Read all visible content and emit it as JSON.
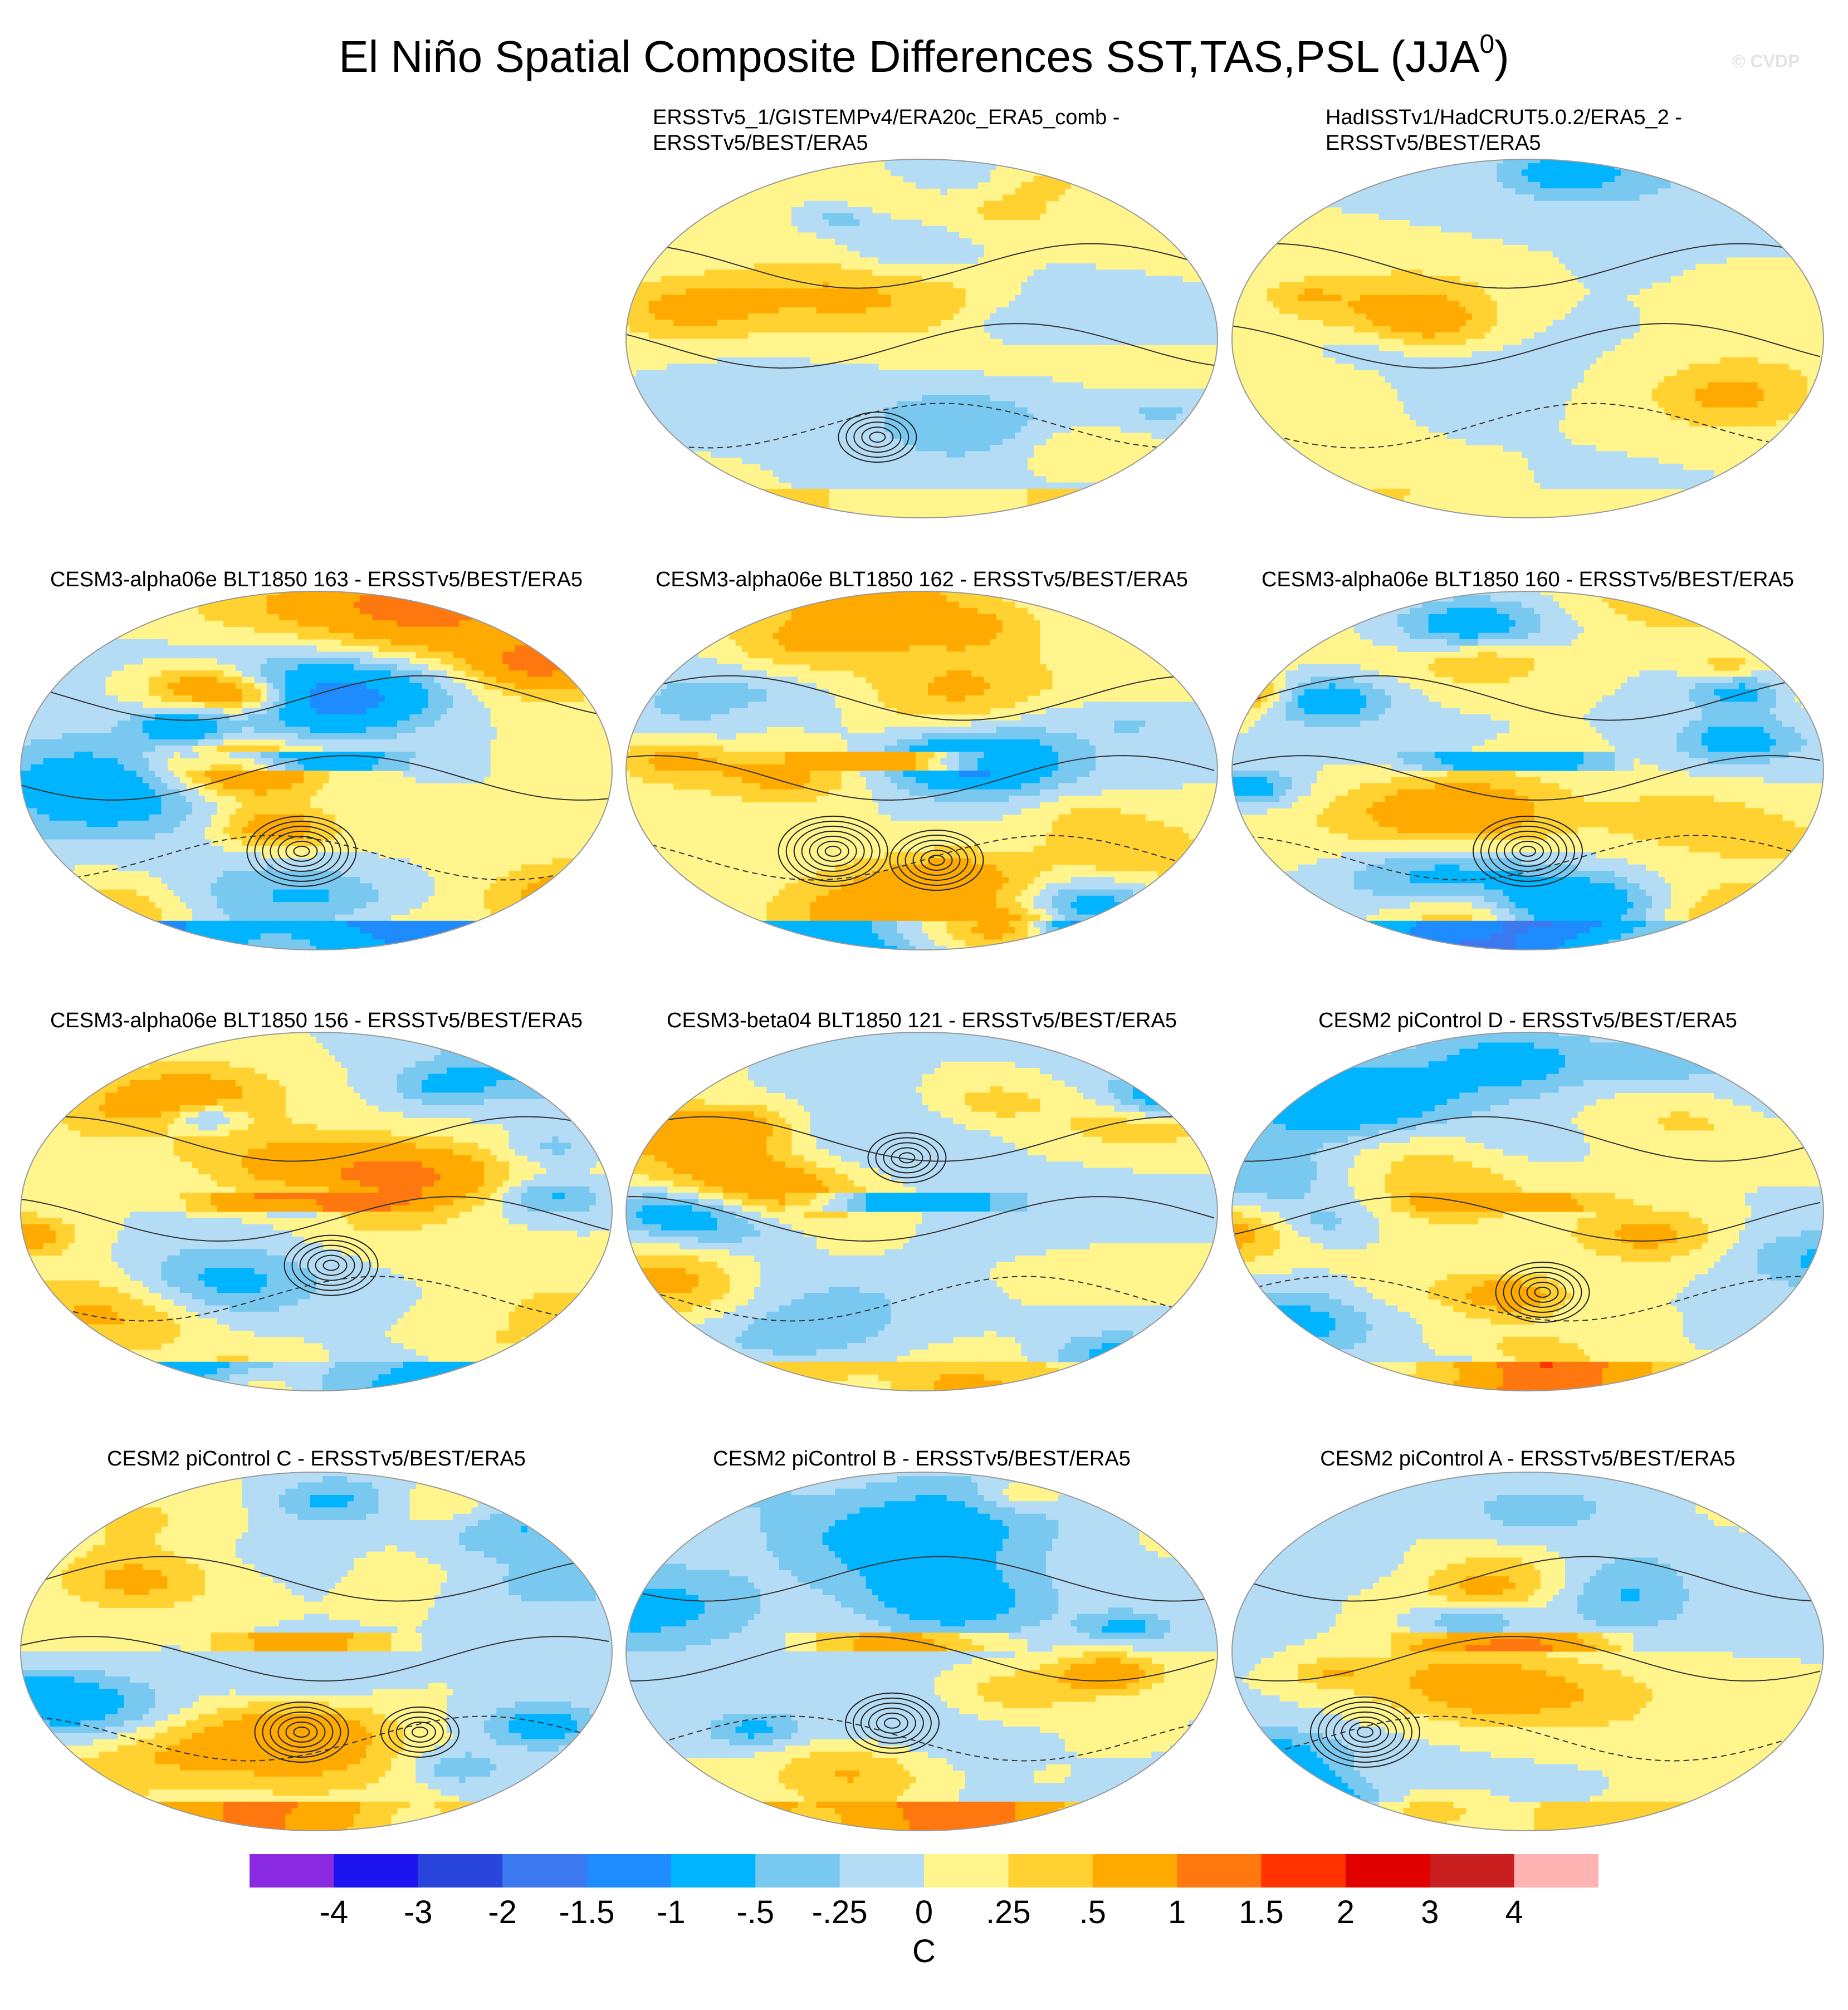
{
  "figure": {
    "title_main": "El Niño Spatial Composite Differences SST,TAS,PSL (JJA",
    "title_sup": "0",
    "title_close": ")",
    "watermark": "© CVDP"
  },
  "panels": [
    {
      "title_lines": [
        "ERSSTv5_1/GISTEMPv4/ERA20c_ERA5_comb -",
        "ERSSTv5/BEST/ERA5"
      ],
      "pattern_seed": 11,
      "enso_warm": 0.0,
      "amp": 0.55,
      "south_band": 0.35,
      "highs": [
        [
          -0.15,
          -0.55,
          0.6
        ]
      ]
    },
    {
      "title_lines": [
        "HadISSTv1/HadCRUT5.0.2/ERA5_2 -",
        "ERSSTv5/BEST/ERA5"
      ],
      "pattern_seed": 23,
      "enso_warm": 0.0,
      "amp": 0.45,
      "south_band": 0.2,
      "highs": []
    },
    {
      "title_lines": [
        "CESM3-alpha06e BLT1850 163 - ERSSTv5/BEST/ERA5"
      ],
      "pattern_seed": 37,
      "enso_warm": -1.0,
      "amp": 0.95,
      "south_band": -1.6,
      "highs": [
        [
          -0.05,
          -0.45,
          1.0
        ]
      ]
    },
    {
      "title_lines": [
        "CESM3-alpha06e BLT1850 162 - ERSSTv5/BEST/ERA5"
      ],
      "pattern_seed": 41,
      "enso_warm": 1.2,
      "amp": 0.95,
      "south_band": -1.4,
      "highs": [
        [
          -0.3,
          -0.45,
          0.9
        ],
        [
          0.05,
          -0.5,
          0.7
        ]
      ]
    },
    {
      "title_lines": [
        "CESM3-alpha06e BLT1850 160 - ERSSTv5/BEST/ERA5"
      ],
      "pattern_seed": 53,
      "enso_warm": -1.0,
      "amp": 0.95,
      "south_band": -1.6,
      "highs": [
        [
          0.0,
          -0.45,
          1.0
        ]
      ]
    },
    {
      "title_lines": [
        "CESM3-alpha06e BLT1850 156 - ERSSTv5/BEST/ERA5"
      ],
      "pattern_seed": 67,
      "enso_warm": 1.1,
      "amp": 0.9,
      "south_band": -1.0,
      "highs": [
        [
          0.05,
          -0.3,
          0.7
        ]
      ]
    },
    {
      "title_lines": [
        "CESM3-beta04 BLT1850 121 - ERSSTv5/BEST/ERA5"
      ],
      "pattern_seed": 79,
      "enso_warm": -0.9,
      "amp": 0.85,
      "south_band": 0.6,
      "highs": [
        [
          -0.05,
          0.3,
          0.6
        ]
      ]
    },
    {
      "title_lines": [
        "CESM2 piControl D - ERSSTv5/BEST/ERA5"
      ],
      "pattern_seed": 83,
      "enso_warm": 0.6,
      "amp": 0.7,
      "south_band": 1.2,
      "highs": [
        [
          0.05,
          -0.45,
          0.8
        ]
      ]
    },
    {
      "title_lines": [
        "CESM2 piControl C - ERSSTv5/BEST/ERA5"
      ],
      "pattern_seed": 97,
      "enso_warm": 0.7,
      "amp": 0.8,
      "south_band": 1.0,
      "highs": [
        [
          -0.05,
          -0.45,
          0.7
        ],
        [
          0.35,
          -0.45,
          0.6
        ]
      ]
    },
    {
      "title_lines": [
        "CESM2 piControl B - ERSSTv5/BEST/ERA5"
      ],
      "pattern_seed": 101,
      "enso_warm": 0.8,
      "amp": 0.8,
      "south_band": 1.3,
      "highs": [
        [
          -0.1,
          -0.4,
          0.7
        ]
      ]
    },
    {
      "title_lines": [
        "CESM2 piControl A - ERSSTv5/BEST/ERA5"
      ],
      "pattern_seed": 113,
      "enso_warm": 1.0,
      "amp": 0.85,
      "south_band": 0.4,
      "highs": [
        [
          -0.55,
          -0.45,
          1.0
        ]
      ]
    }
  ],
  "colorbar": {
    "colors": [
      "#8a2be2",
      "#1e14f0",
      "#2846dc",
      "#3c78f0",
      "#1e8cff",
      "#00b4ff",
      "#78c8f0",
      "#b4dcf5",
      "#fff58c",
      "#ffd232",
      "#ffaa00",
      "#ff780f",
      "#ff3200",
      "#e10000",
      "#c81e1e",
      "#ffb4b4"
    ],
    "tick_labels": [
      "-4",
      "-3",
      "-2",
      "-1.5",
      "-1",
      "-.5",
      "-.25",
      "0",
      ".25",
      ".5",
      "1",
      "1.5",
      "2",
      "3",
      "4"
    ],
    "units": "C"
  }
}
